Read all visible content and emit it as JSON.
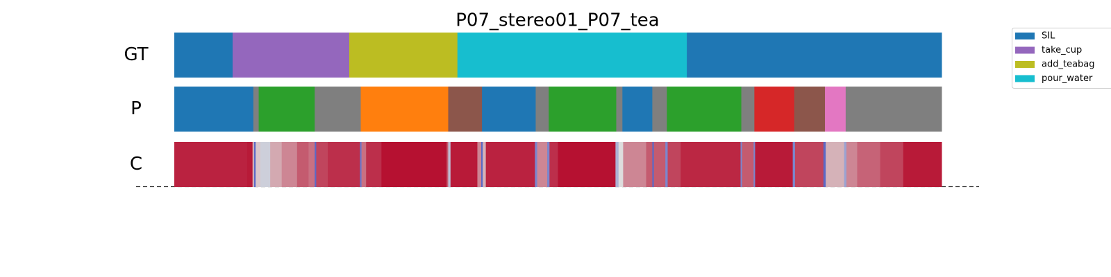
{
  "chart_data": {
    "type": "segmentation",
    "title": "P07_stereo01_P07_tea",
    "xlim": [
      0,
      100
    ],
    "rows": [
      {
        "label": "GT",
        "segments": [
          {
            "name": "SIL",
            "start": 0,
            "end": 7.6
          },
          {
            "name": "take_cup",
            "start": 7.6,
            "end": 22.8
          },
          {
            "name": "add_teabag",
            "start": 22.8,
            "end": 36.9
          },
          {
            "name": "pour_water",
            "start": 36.9,
            "end": 66.8
          },
          {
            "name": "SIL",
            "start": 66.8,
            "end": 100
          }
        ]
      },
      {
        "label": "P",
        "segments": [
          {
            "color": "#1f77b4",
            "start": 0,
            "end": 10.3
          },
          {
            "color": "#7f7f7f",
            "start": 10.3,
            "end": 11.0
          },
          {
            "color": "#2ca02c",
            "start": 11.0,
            "end": 18.3
          },
          {
            "color": "#7f7f7f",
            "start": 18.3,
            "end": 24.3
          },
          {
            "color": "#ff7f0e",
            "start": 24.3,
            "end": 35.7
          },
          {
            "color": "#8c564b",
            "start": 35.7,
            "end": 40.1
          },
          {
            "color": "#1f77b4",
            "start": 40.1,
            "end": 47.1
          },
          {
            "color": "#7f7f7f",
            "start": 47.1,
            "end": 48.8
          },
          {
            "color": "#2ca02c",
            "start": 48.8,
            "end": 57.6
          },
          {
            "color": "#7f7f7f",
            "start": 57.6,
            "end": 58.4
          },
          {
            "color": "#1f77b4",
            "start": 58.4,
            "end": 62.3
          },
          {
            "color": "#7f7f7f",
            "start": 62.3,
            "end": 64.2
          },
          {
            "color": "#2ca02c",
            "start": 64.2,
            "end": 73.9
          },
          {
            "color": "#7f7f7f",
            "start": 73.9,
            "end": 75.6
          },
          {
            "color": "#d62728",
            "start": 75.6,
            "end": 80.8
          },
          {
            "color": "#8c564b",
            "start": 80.8,
            "end": 84.8
          },
          {
            "color": "#e377c2",
            "start": 84.8,
            "end": 87.5
          },
          {
            "color": "#7f7f7f",
            "start": 87.5,
            "end": 100
          }
        ]
      },
      {
        "label": "C",
        "x": [
          0,
          9.5,
          10.2,
          10.4,
          10.6,
          11.2,
          12.5,
          14,
          16,
          17.5,
          18.3,
          18.5,
          20,
          24.2,
          24.4,
          25,
          27,
          35.5,
          35.7,
          36,
          39.5,
          40,
          40.2,
          40.6,
          47,
          47.3,
          48.6,
          48.9,
          50,
          57.5,
          57.9,
          58.5,
          61.5,
          62.3,
          62.5,
          64,
          64.3,
          66,
          73.8,
          74,
          75.5,
          75.7,
          80.6,
          80.9,
          84.6,
          84.9,
          87.3,
          87.6,
          89,
          92,
          95
        ],
        "values": [
          0.93,
          0.95,
          0.6,
          0.1,
          0.55,
          0.45,
          0.62,
          0.7,
          0.8,
          0.75,
          0.1,
          0.85,
          0.9,
          0.15,
          0.75,
          0.9,
          0.97,
          0.8,
          0.4,
          0.95,
          0.7,
          0.1,
          0.6,
          0.93,
          0.2,
          0.7,
          0.2,
          0.9,
          0.97,
          0.35,
          0.5,
          0.7,
          0.8,
          0.1,
          0.8,
          0.2,
          0.85,
          0.92,
          0.2,
          0.8,
          0.2,
          0.95,
          0.2,
          0.85,
          0.1,
          0.6,
          0.3,
          0.7,
          0.78,
          0.85,
          0.95
        ]
      }
    ],
    "legend": [
      {
        "name": "SIL",
        "color": "#1f77b4"
      },
      {
        "name": "take_cup",
        "color": "#9467bd"
      },
      {
        "name": "add_teabag",
        "color": "#bcbd22"
      },
      {
        "name": "pour_water",
        "color": "#17becf"
      }
    ]
  }
}
